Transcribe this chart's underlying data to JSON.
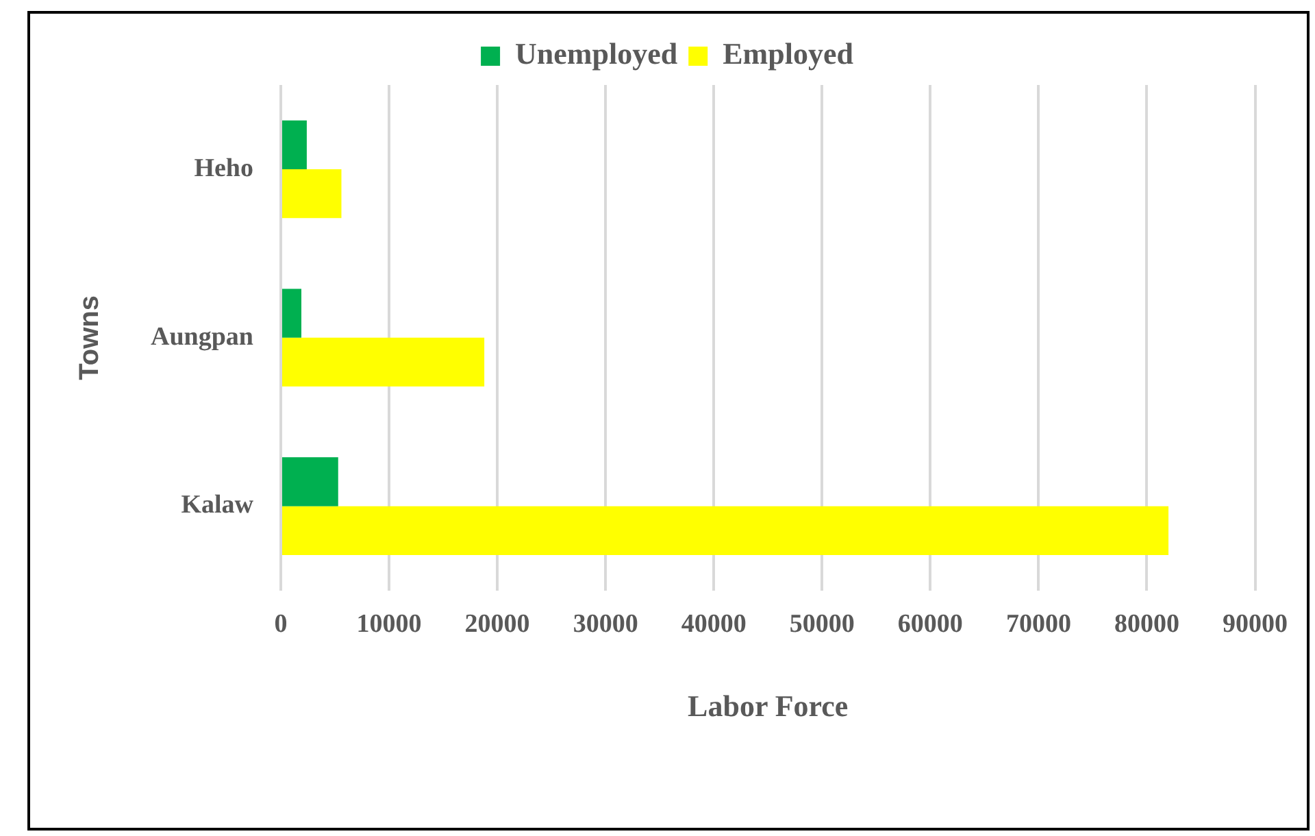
{
  "chart_data": {
    "type": "bar",
    "orientation": "horizontal",
    "xlabel": "Labor Force",
    "ylabel": "Towns",
    "categories": [
      "Heho",
      "Aungpan",
      "Kalaw"
    ],
    "series": [
      {
        "name": "Unemployed",
        "color": "#00b050",
        "values": [
          2400,
          1900,
          5300
        ]
      },
      {
        "name": "Employed",
        "color": "#ffff00",
        "values": [
          5600,
          18800,
          82000
        ]
      }
    ],
    "xlim": [
      0,
      90000
    ],
    "xticks": [
      0,
      10000,
      20000,
      30000,
      40000,
      50000,
      60000,
      70000,
      80000,
      90000
    ],
    "grid": "x",
    "legend": "top"
  }
}
